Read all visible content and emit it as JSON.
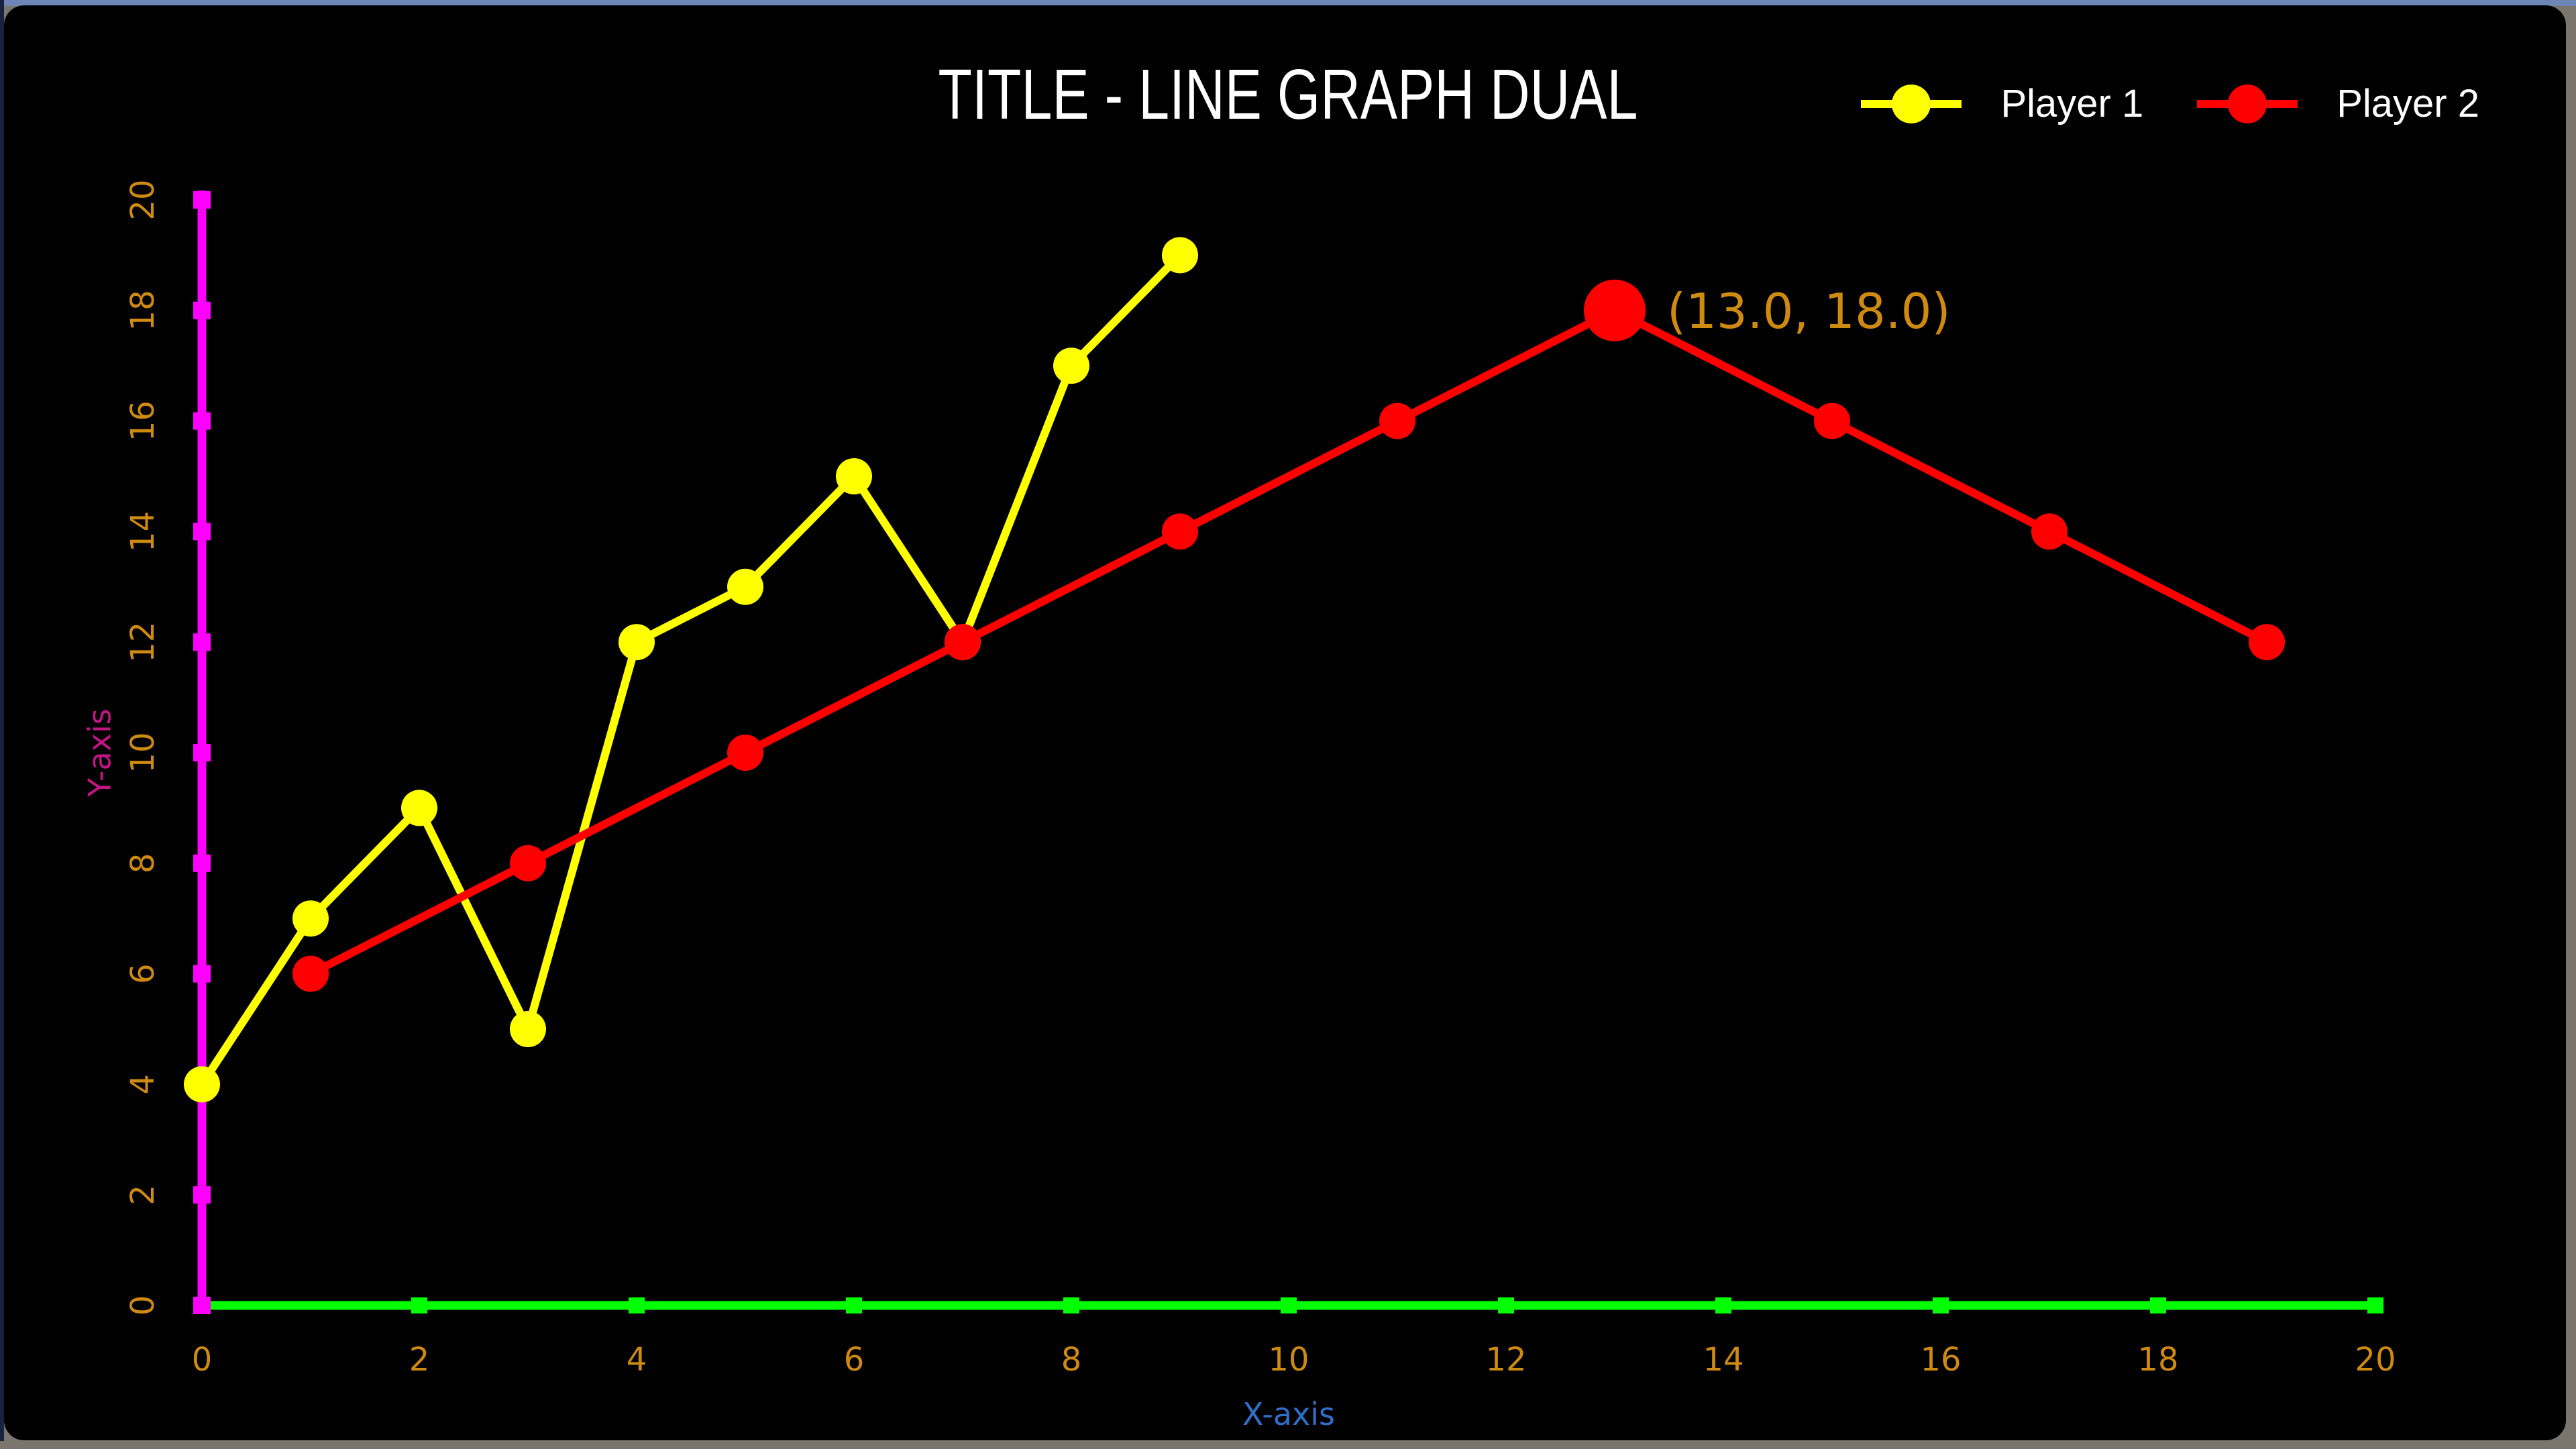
{
  "window": {
    "top_border_color": "#6C86B5",
    "frame_color": "#7A756D",
    "left_border_color": "#18223E",
    "panel_background": "#000000"
  },
  "chart_data": {
    "type": "line",
    "title": "TITLE - LINE GRAPH DUAL",
    "xlabel": "X-axis",
    "ylabel": "Y-axis",
    "xlim": [
      0,
      20
    ],
    "ylim": [
      0,
      20
    ],
    "xticks": [
      0,
      2,
      4,
      6,
      8,
      10,
      12,
      14,
      16,
      18,
      20
    ],
    "yticks": [
      0,
      2,
      4,
      6,
      8,
      10,
      12,
      14,
      16,
      18,
      20
    ],
    "grid": "off",
    "legend_position": "top-right",
    "background": "#000000",
    "axis_colors": {
      "x": "#00FF00",
      "y": "#FF00FF"
    },
    "label_colors": {
      "title": "#FFFFFF",
      "xlabel": "#2E70C9",
      "ylabel": "#C41585",
      "ticks": "#CF8A10",
      "legend_text": "#FFFFFF"
    },
    "series": [
      {
        "name": "Player 1",
        "color": "#FFFF00",
        "x": [
          0,
          1,
          2,
          3,
          4,
          5,
          6,
          7,
          8,
          9
        ],
        "y": [
          4,
          7,
          9,
          5,
          12,
          13,
          15,
          12,
          17,
          19
        ]
      },
      {
        "name": "Player 2",
        "color": "#FF0000",
        "x": [
          1,
          3,
          5,
          7,
          9,
          11,
          13,
          15,
          17,
          19
        ],
        "y": [
          6,
          8,
          10,
          12,
          14,
          16,
          18,
          16,
          14,
          12
        ]
      }
    ],
    "annotation": {
      "text": "(13.0, 18.0)",
      "x": 13.0,
      "y": 18.0,
      "series_index": 1,
      "color": "#CF8A10",
      "marker_enlarged": true
    }
  }
}
